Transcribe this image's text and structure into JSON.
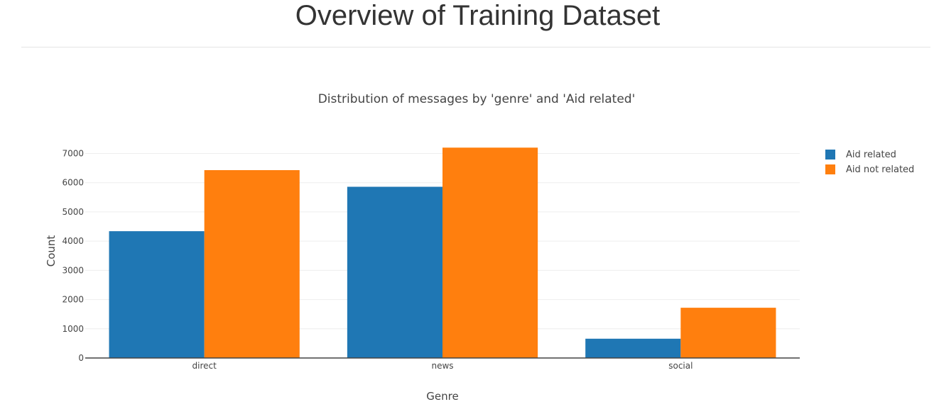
{
  "page": {
    "title": "Overview of Training Dataset"
  },
  "chart_data": {
    "type": "bar",
    "title": "Distribution of messages by 'genre' and 'Aid related'",
    "xlabel": "Genre",
    "ylabel": "Count",
    "categories": [
      "direct",
      "news",
      "social"
    ],
    "series": [
      {
        "name": "Aid related",
        "values": [
          4340,
          5860,
          660
        ],
        "color": "#1f77b4"
      },
      {
        "name": "Aid not related",
        "values": [
          6430,
          7200,
          1720
        ],
        "color": "#ff7f0e"
      }
    ],
    "ylim": [
      0,
      7400
    ],
    "yticks": [
      0,
      1000,
      2000,
      3000,
      4000,
      5000,
      6000,
      7000
    ],
    "grid": true,
    "legend_position": "top-right"
  }
}
